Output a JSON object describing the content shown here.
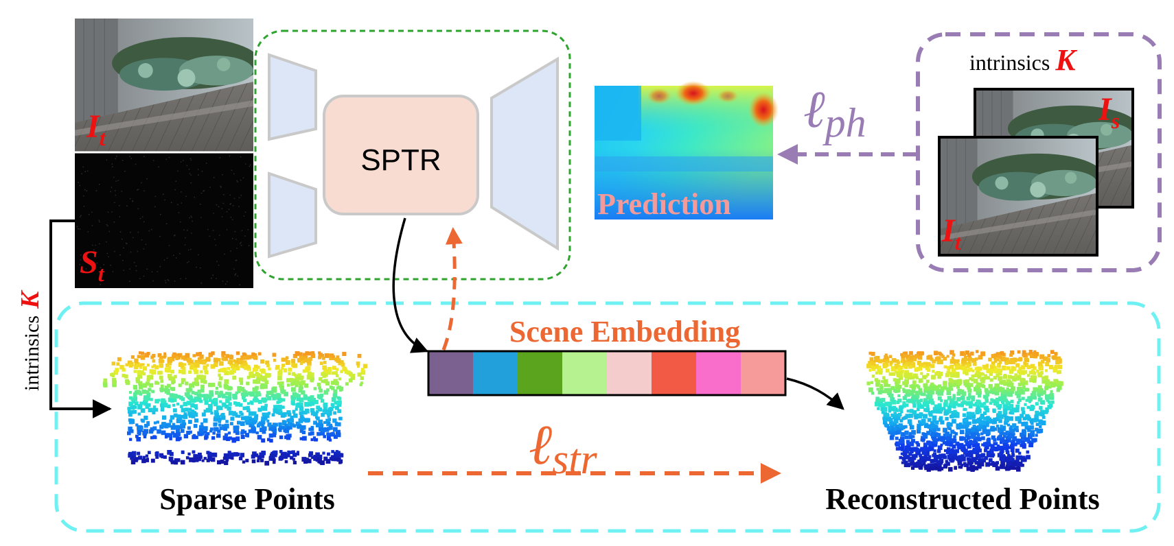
{
  "labels": {
    "it_img": "I",
    "it_sub": "t",
    "st_img": "S",
    "st_sub": "t",
    "intrinsics_left": "intrinsics",
    "k_left": "K",
    "sptr": "SPTR",
    "prediction": "Prediction",
    "loss_ph_main": "ℓ",
    "loss_ph_sub": "ph",
    "intrinsics_right": "intrinsics",
    "k_right": "K",
    "is_img": "I",
    "is_sub": "s",
    "it2_img": "I",
    "it2_sub": "t",
    "scene_embedding": "Scene Embedding",
    "loss_str_main": "ℓ",
    "loss_str_sub": "str",
    "sparse_points": "Sparse Points",
    "reconstructed_points": "Reconstructed Points"
  },
  "embedding_colors": [
    "#7a6190",
    "#22a0dc",
    "#5ba41d",
    "#b6f290",
    "#f4cccc",
    "#f25a45",
    "#f96ecb",
    "#f79a9a"
  ],
  "colors": {
    "green_dash": "#2ea32e",
    "cyan_dash": "#6ff0f2",
    "purple": "#9a7cb5",
    "orange": "#ec6732",
    "encoder_fill": "#dce6f7",
    "sptr_fill": "#f8dcd2",
    "red_label": "#ee1111",
    "prediction_text": "#f49a9a"
  }
}
